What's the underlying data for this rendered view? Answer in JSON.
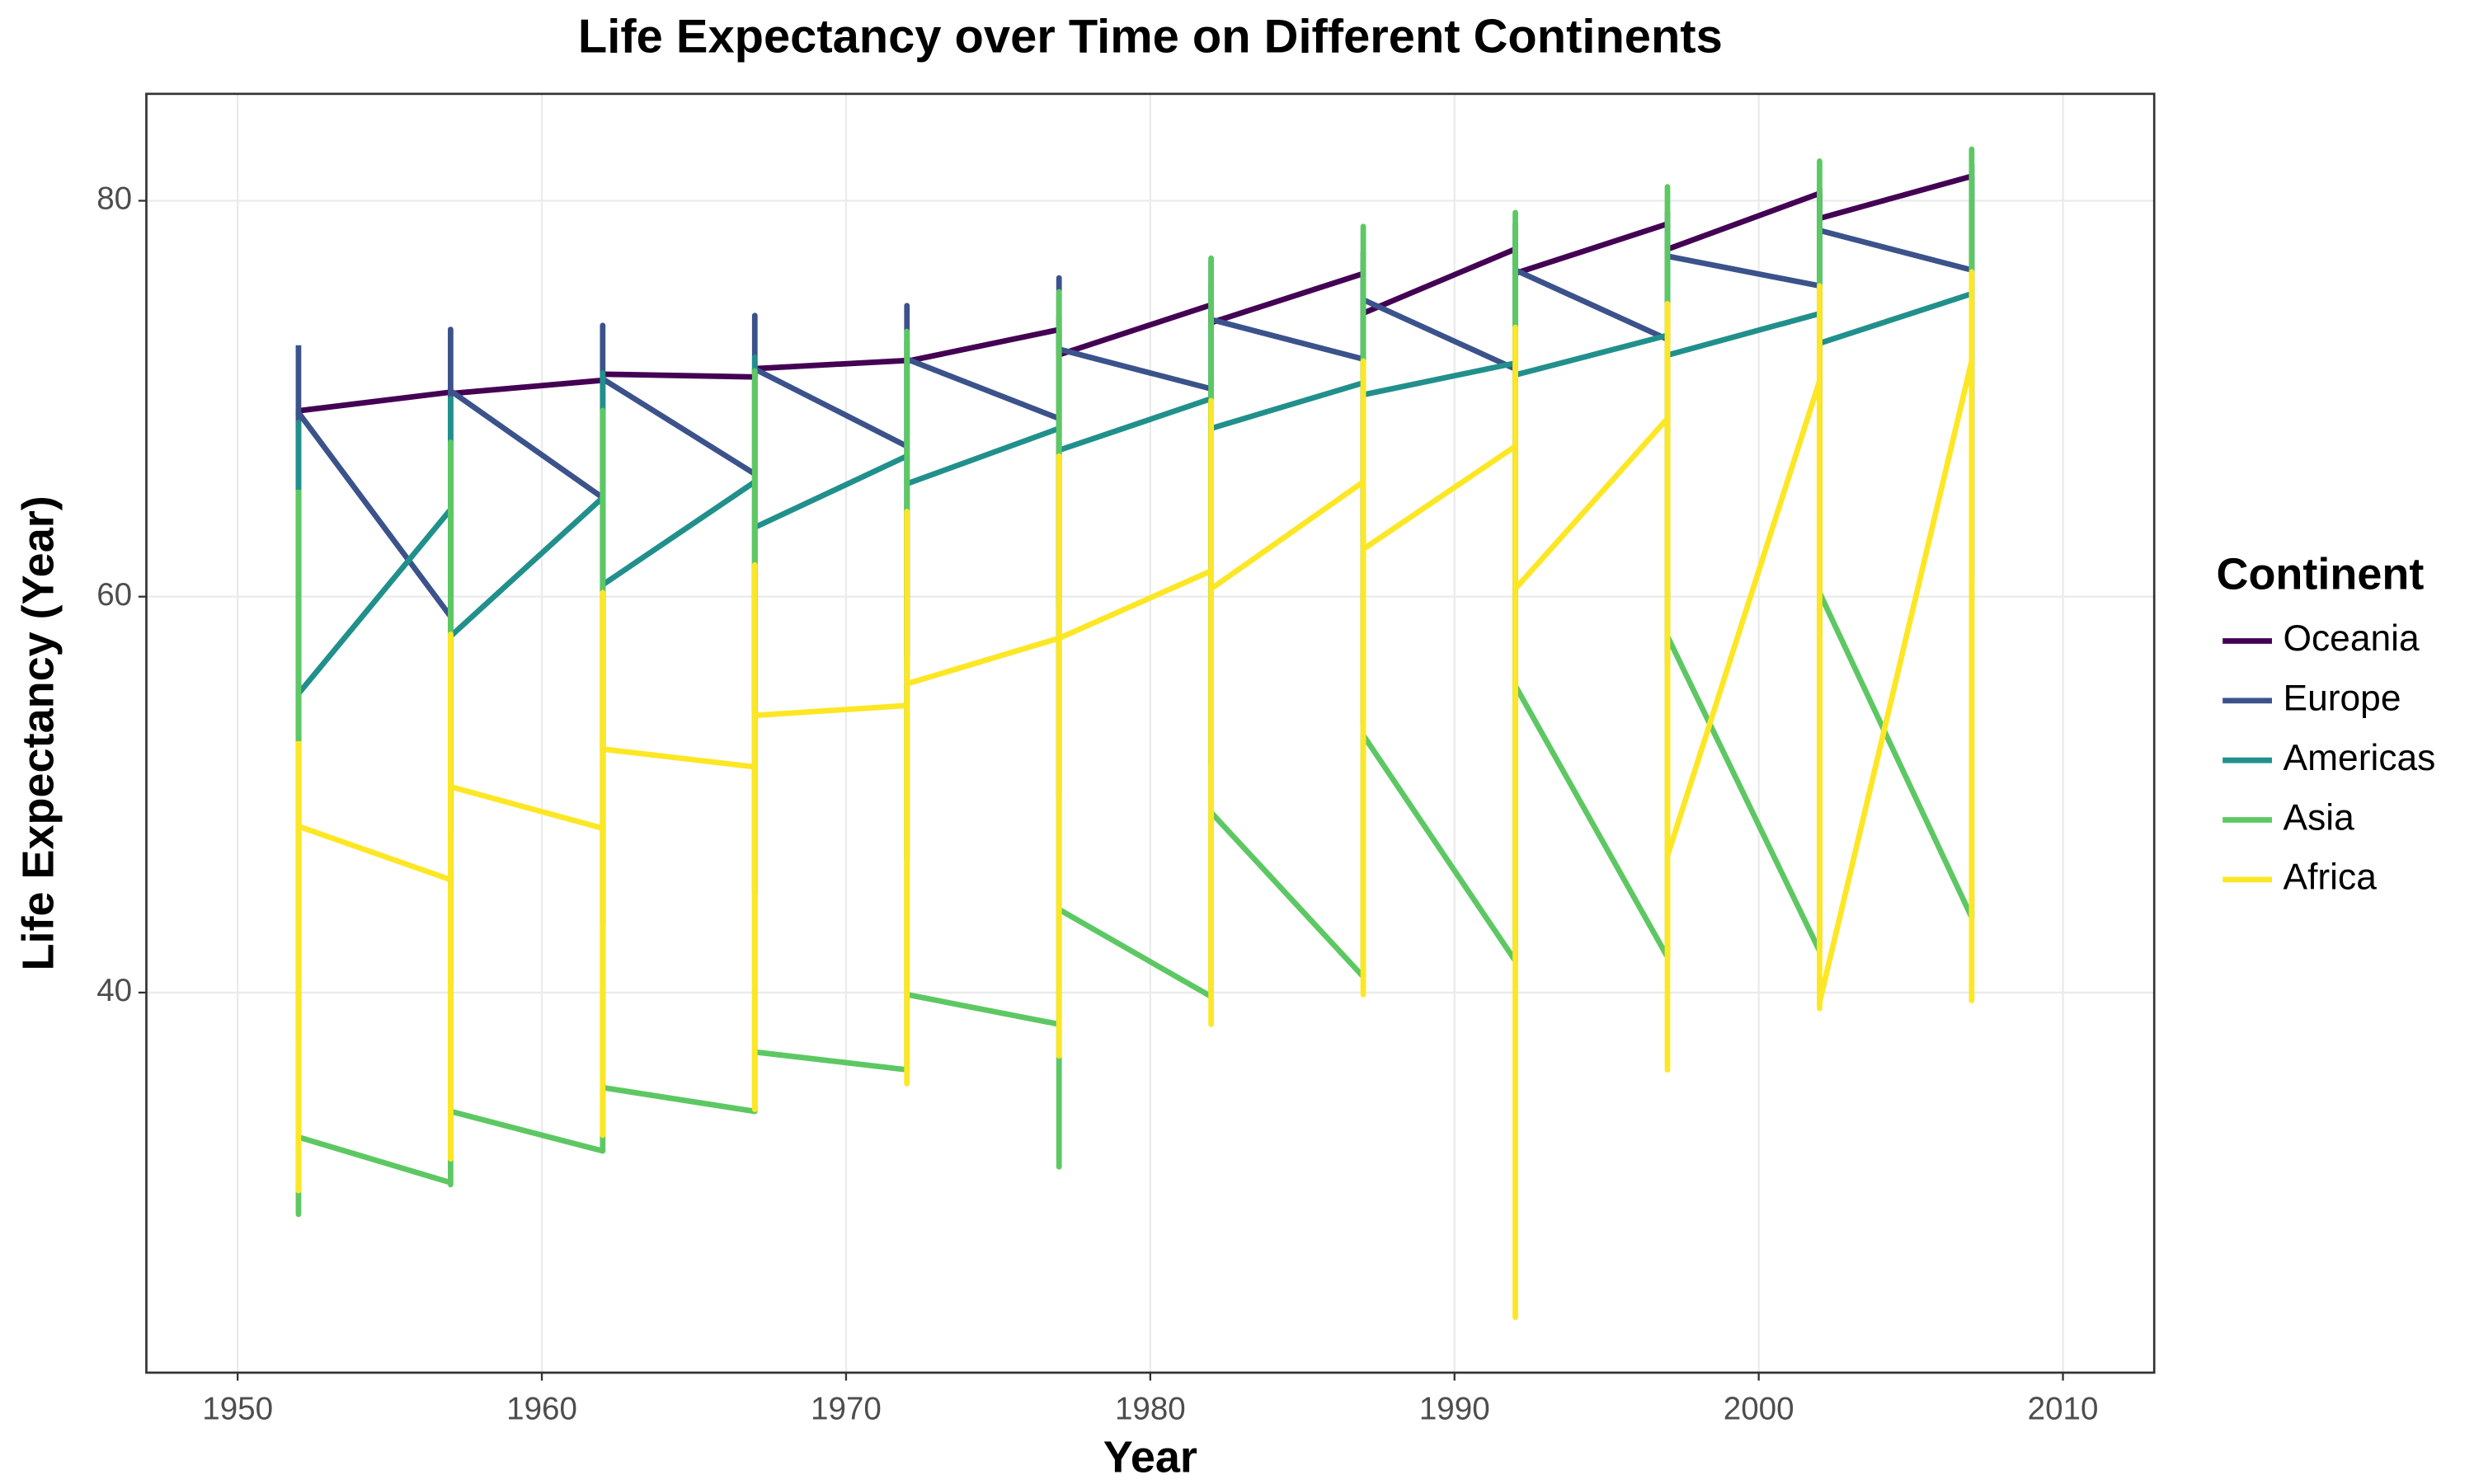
{
  "chart_data": {
    "type": "line",
    "title": "Life Expectancy over Time on Different Continents",
    "x_label": "Year",
    "y_label": "Life Expectancy (Year)",
    "legend_title": "Continent",
    "legend_position": "right",
    "xlim": [
      1947,
      2013
    ],
    "xticks": [
      1950,
      1960,
      1970,
      1980,
      1990,
      2000,
      2010
    ],
    "ylim": [
      20.8,
      85.4
    ],
    "yticks": [
      40,
      60,
      80
    ],
    "grid": true,
    "x": [
      1952,
      1952,
      1952,
      1952,
      1957,
      1957,
      1957,
      1957,
      1962,
      1962,
      1962,
      1962,
      1967,
      1967,
      1967,
      1967,
      1972,
      1972,
      1972,
      1972,
      1977,
      1977,
      1977,
      1977,
      1982,
      1982,
      1982,
      1982,
      1987,
      1987,
      1987,
      1987,
      1992,
      1992,
      1992,
      1992,
      1997,
      1997,
      1997,
      1997,
      2002,
      2002,
      2002,
      2002,
      2007,
      2007,
      2007,
      2007
    ],
    "series": [
      {
        "name": "Oceania",
        "color": "#440154",
        "values": [
          69.12,
          69.39,
          69.12,
          69.39,
          70.33,
          70.33,
          70.26,
          70.26,
          70.93,
          71.24,
          70.93,
          71.24,
          71.1,
          71.52,
          71.1,
          71.52,
          71.93,
          71.93,
          71.89,
          71.89,
          73.49,
          73.49,
          72.22,
          72.22,
          74.74,
          74.74,
          73.84,
          73.84,
          76.32,
          76.32,
          74.32,
          74.32,
          77.56,
          77.56,
          76.33,
          76.33,
          78.83,
          78.83,
          77.55,
          77.55,
          80.37,
          80.37,
          79.11,
          79.11,
          81.24,
          81.24,
          80.2,
          80.2
        ]
      },
      {
        "name": "Europe",
        "color": "#3b528b",
        "values": [
          72.7,
          72.7,
          43.6,
          69.3,
          59.0,
          73.5,
          48.1,
          70.4,
          65.0,
          73.7,
          52.1,
          71.0,
          66.2,
          74.2,
          54.3,
          71.5,
          67.6,
          74.7,
          57.0,
          72.0,
          69.0,
          76.1,
          59.5,
          72.5,
          70.5,
          77.0,
          61.0,
          74.0,
          72.0,
          77.4,
          63.1,
          75.0,
          71.5,
          78.8,
          66.1,
          76.5,
          73.0,
          79.4,
          68.8,
          77.2,
          75.7,
          80.6,
          70.8,
          78.5,
          76.5,
          81.8,
          71.8,
          76.5
        ]
      },
      {
        "name": "Americas",
        "color": "#21908c",
        "values": [
          55.1,
          68.8,
          37.6,
          55.1,
          64.4,
          70.0,
          40.7,
          58.0,
          65.0,
          71.3,
          43.4,
          60.6,
          65.8,
          72.1,
          45.0,
          63.5,
          67.1,
          72.9,
          46.7,
          65.7,
          68.5,
          74.2,
          49.9,
          67.4,
          70.0,
          75.8,
          51.5,
          68.5,
          70.8,
          76.9,
          53.6,
          70.2,
          71.8,
          78.0,
          55.1,
          71.2,
          73.2,
          78.6,
          56.7,
          72.2,
          74.3,
          79.8,
          58.1,
          72.8,
          75.3,
          80.7,
          60.9,
          75.3
        ]
      },
      {
        "name": "Asia",
        "color": "#5dc863",
        "values": [
          65.4,
          65.4,
          28.8,
          32.7,
          30.4,
          67.8,
          30.3,
          34.0,
          32.0,
          69.4,
          32.0,
          35.2,
          34.0,
          71.4,
          34.0,
          37.0,
          36.1,
          73.4,
          36.1,
          39.9,
          38.4,
          75.4,
          31.2,
          44.2,
          39.8,
          77.1,
          39.8,
          49.1,
          40.8,
          78.7,
          40.8,
          53.0,
          41.6,
          79.4,
          41.6,
          55.5,
          41.8,
          80.7,
          41.8,
          58.0,
          42.1,
          82.0,
          42.1,
          60.2,
          43.8,
          82.6,
          43.8,
          43.8
        ]
      },
      {
        "name": "Africa",
        "color": "#fde725",
        "values": [
          52.7,
          52.7,
          30.0,
          48.4,
          45.7,
          58.1,
          31.6,
          50.4,
          48.3,
          60.2,
          32.8,
          52.3,
          51.4,
          61.6,
          34.1,
          54.0,
          54.5,
          64.3,
          35.4,
          55.6,
          57.9,
          67.1,
          36.8,
          57.9,
          61.3,
          69.9,
          38.4,
          60.4,
          65.8,
          71.9,
          39.9,
          62.4,
          67.6,
          73.6,
          23.6,
          60.4,
          69.0,
          74.8,
          36.1,
          46.9,
          70.9,
          75.7,
          39.2,
          39.5,
          71.9,
          76.4,
          39.6,
          71.9
        ]
      }
    ]
  }
}
